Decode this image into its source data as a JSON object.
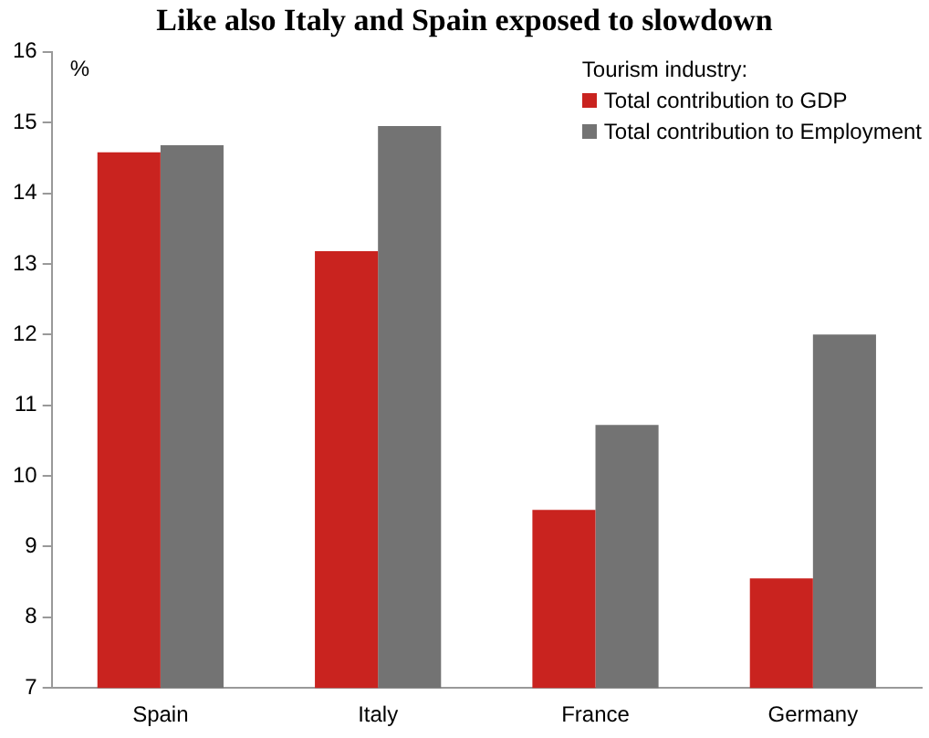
{
  "chart_data": {
    "type": "bar",
    "title": "Like also Italy and Spain exposed to slowdown",
    "ylabel": "%",
    "legend_title": "Tourism industry:",
    "categories": [
      "Spain",
      "Italy",
      "France",
      "Germany"
    ],
    "series": [
      {
        "name": "Total contribution to GDP",
        "color": "#c9231f",
        "values": [
          14.58,
          13.18,
          9.52,
          8.55
        ]
      },
      {
        "name": "Total contribution to Employment",
        "color": "#737373",
        "values": [
          14.68,
          14.95,
          10.72,
          12.0
        ]
      }
    ],
    "ylim": [
      7,
      16
    ],
    "yticks": [
      7,
      8,
      9,
      10,
      11,
      12,
      13,
      14,
      15,
      16
    ],
    "grid": false,
    "legend": "top right"
  }
}
